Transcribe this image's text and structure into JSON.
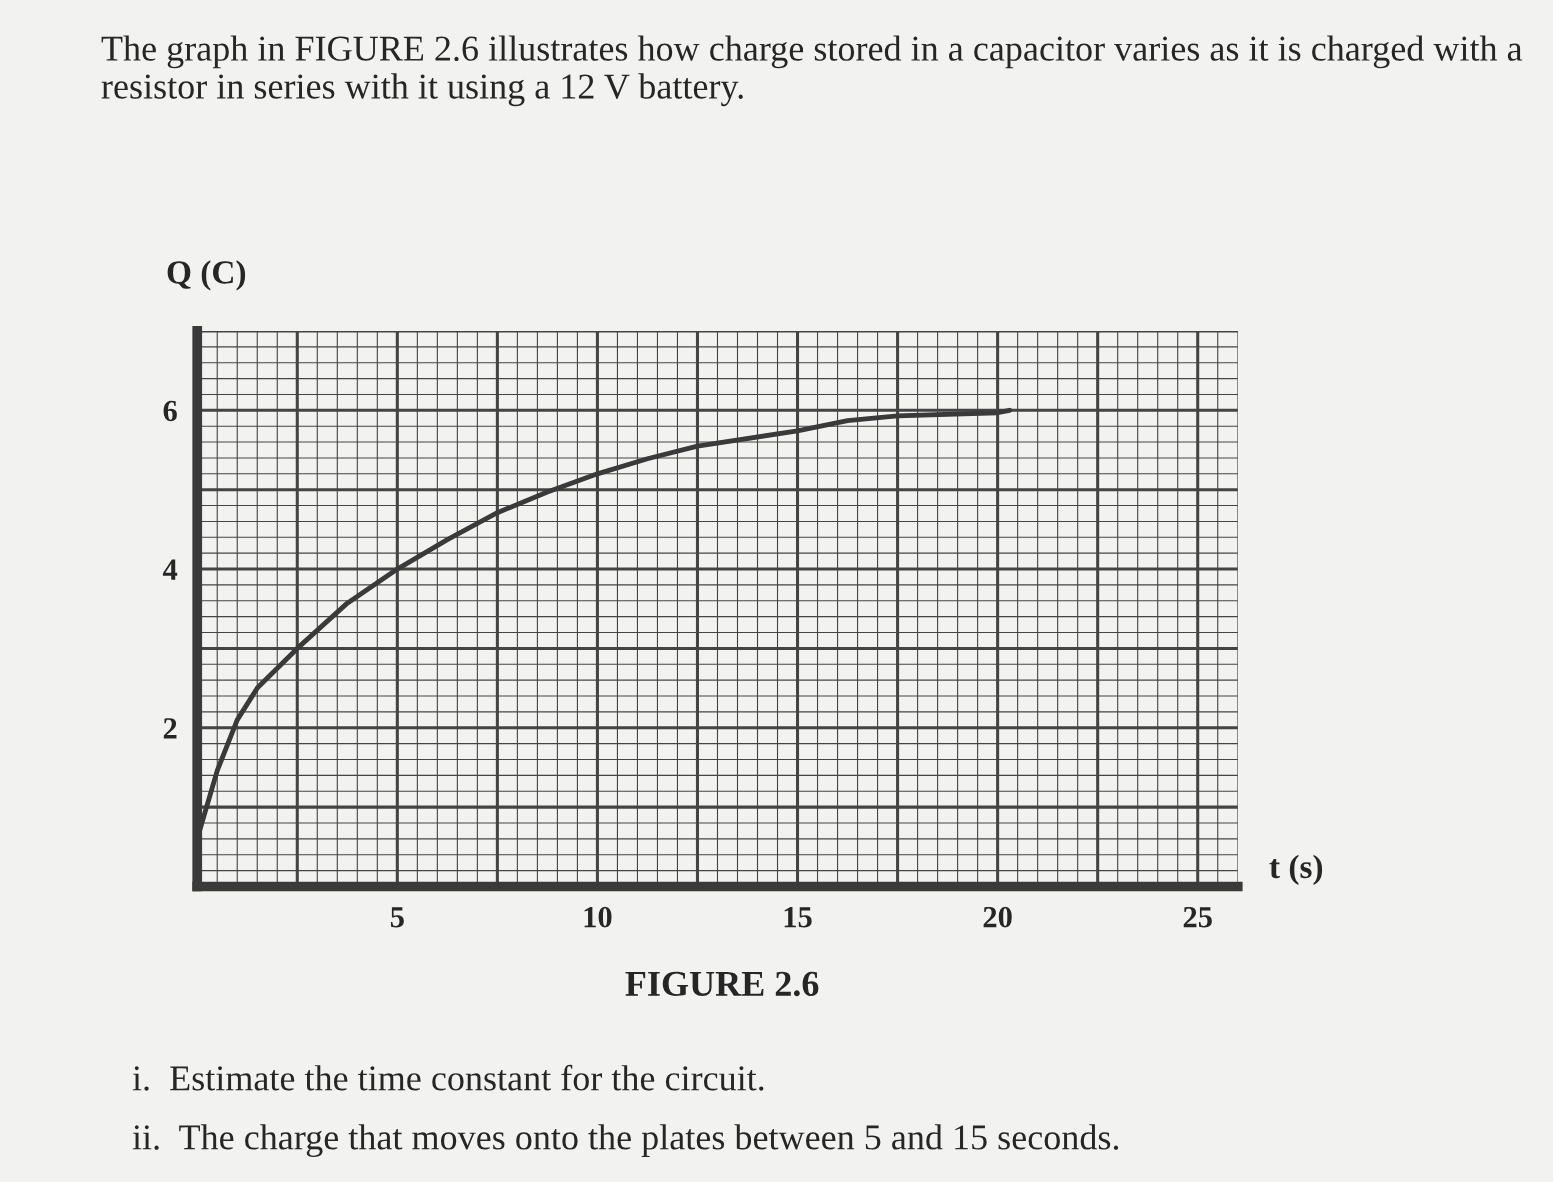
{
  "chart_data": {
    "type": "line",
    "title": "The graph in FIGURE 2.6 illustrates how charge stored in a capacitor varies as it is charged with a resistor in series with it using a 12 V battery.",
    "xlabel": "t (s)",
    "ylabel": "Q (C)",
    "x": [
      0,
      0.5,
      1,
      1.5,
      2.5,
      3.75,
      5,
      6.25,
      7.5,
      8.75,
      10,
      11.25,
      12.5,
      15,
      16.25,
      17.5,
      20,
      20.3
    ],
    "series": [
      {
        "color": "#3a3a3a",
        "values": [
          0.6,
          1.46,
          2.1,
          2.5,
          3.0,
          3.57,
          4.0,
          4.37,
          4.71,
          4.97,
          5.2,
          5.39,
          5.55,
          5.74,
          5.87,
          5.93,
          5.97,
          6.0
        ]
      }
    ],
    "xlim": [
      0,
      26
    ],
    "ylim": [
      0,
      7
    ],
    "xticks": [
      5,
      10,
      15,
      20,
      25
    ],
    "yticks": [
      2,
      4,
      6
    ],
    "grid": true,
    "marker": "none",
    "line_style": "solid",
    "annotations": [
      "FIGURE 2.6",
      "i.  Estimate the time constant for the circuit.",
      "ii.  The charge that moves onto the plates between 5 and 15 seconds."
    ]
  }
}
